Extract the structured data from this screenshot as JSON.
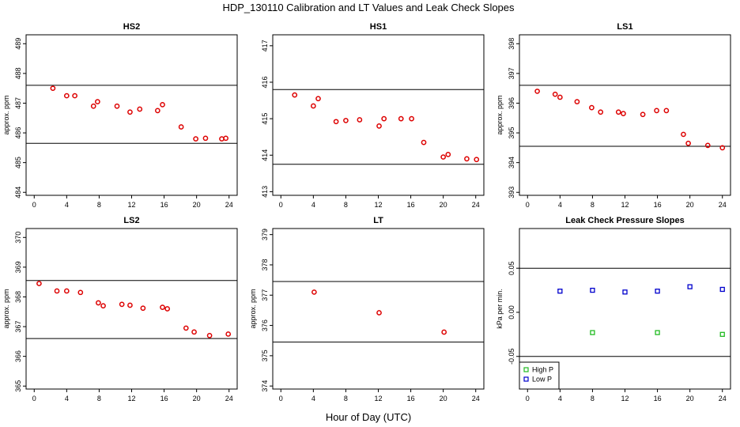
{
  "figure": {
    "title": "HDP_130110  Calibration and LT Values and Leak Check Slopes",
    "xlabel": "Hour of Day (UTC)"
  },
  "chart_data": [
    {
      "type": "scatter",
      "title": "HS2",
      "ylabel": "approx. ppm",
      "xlim": [
        -1,
        25
      ],
      "xticks": [
        0,
        4,
        8,
        12,
        16,
        20,
        24
      ],
      "ylim": [
        483.9,
        489.3
      ],
      "yticks": [
        484,
        485,
        486,
        487,
        488,
        489
      ],
      "hlines": [
        487.6,
        485.65
      ],
      "grid": false,
      "series": [
        {
          "color": "#dd0000",
          "marker": "circle",
          "x": [
            2.3,
            4.0,
            5.0,
            7.3,
            7.8,
            10.2,
            11.8,
            13.0,
            15.2,
            15.8,
            18.1,
            19.9,
            21.1,
            23.1,
            23.6
          ],
          "y": [
            487.5,
            487.25,
            487.25,
            486.9,
            487.05,
            486.9,
            486.7,
            486.8,
            486.75,
            486.95,
            486.2,
            485.8,
            485.82,
            485.8,
            485.82
          ]
        }
      ]
    },
    {
      "type": "scatter",
      "title": "HS1",
      "ylabel": "",
      "xlim": [
        -1,
        25
      ],
      "xticks": [
        0,
        4,
        8,
        12,
        16,
        20,
        24
      ],
      "ylim": [
        412.9,
        417.3
      ],
      "yticks": [
        413,
        414,
        415,
        416,
        417
      ],
      "hlines": [
        415.8,
        413.75
      ],
      "grid": false,
      "series": [
        {
          "color": "#dd0000",
          "marker": "circle",
          "x": [
            1.7,
            4.0,
            4.6,
            6.8,
            8.0,
            9.7,
            12.1,
            12.7,
            14.8,
            16.1,
            17.6,
            20.0,
            20.6,
            22.9,
            24.1
          ],
          "y": [
            415.65,
            415.35,
            415.55,
            414.92,
            414.95,
            414.97,
            414.8,
            415.0,
            415.0,
            415.0,
            414.35,
            413.95,
            414.02,
            413.9,
            413.88
          ]
        }
      ]
    },
    {
      "type": "scatter",
      "title": "LS1",
      "ylabel": "approx. ppm",
      "xlim": [
        -1,
        25
      ],
      "xticks": [
        0,
        4,
        8,
        12,
        16,
        20,
        24
      ],
      "ylim": [
        392.9,
        398.3
      ],
      "yticks": [
        393,
        394,
        395,
        396,
        397,
        398
      ],
      "hlines": [
        396.6,
        394.55
      ],
      "grid": false,
      "series": [
        {
          "color": "#dd0000",
          "marker": "circle",
          "x": [
            1.2,
            3.4,
            4.0,
            6.1,
            7.9,
            9.0,
            11.2,
            11.8,
            14.2,
            15.9,
            17.1,
            19.2,
            19.8,
            22.2,
            24.0
          ],
          "y": [
            396.4,
            396.3,
            396.2,
            396.05,
            395.85,
            395.7,
            395.7,
            395.65,
            395.62,
            395.75,
            395.75,
            394.95,
            394.65,
            394.58,
            394.5
          ]
        }
      ]
    },
    {
      "type": "scatter",
      "title": "LS2",
      "ylabel": "approx. ppm",
      "xlim": [
        -1,
        25
      ],
      "xticks": [
        0,
        4,
        8,
        12,
        16,
        20,
        24
      ],
      "ylim": [
        364.9,
        370.3
      ],
      "yticks": [
        365,
        366,
        367,
        368,
        369,
        370
      ],
      "hlines": [
        368.55,
        366.6
      ],
      "grid": false,
      "series": [
        {
          "color": "#dd0000",
          "marker": "circle",
          "x": [
            0.6,
            2.8,
            4.0,
            5.7,
            7.9,
            8.5,
            10.8,
            11.8,
            13.4,
            15.8,
            16.4,
            18.7,
            19.7,
            21.6,
            23.9
          ],
          "y": [
            368.45,
            368.2,
            368.2,
            368.15,
            367.8,
            367.7,
            367.75,
            367.72,
            367.62,
            367.65,
            367.6,
            366.95,
            366.82,
            366.7,
            366.75
          ]
        }
      ]
    },
    {
      "type": "scatter",
      "title": "LT",
      "ylabel": "approx. ppm",
      "xlim": [
        -1,
        25
      ],
      "xticks": [
        0,
        4,
        8,
        12,
        16,
        20,
        24
      ],
      "ylim": [
        373.9,
        379.2
      ],
      "yticks": [
        374,
        375,
        376,
        377,
        378,
        379
      ],
      "hlines": [
        377.45,
        375.45
      ],
      "grid": false,
      "series": [
        {
          "color": "#dd0000",
          "marker": "circle",
          "x": [
            4.1,
            12.1,
            20.1
          ],
          "y": [
            377.1,
            376.42,
            375.78
          ]
        }
      ]
    },
    {
      "type": "scatter",
      "title": "Leak Check Pressure Slopes",
      "ylabel": "kPa per min.",
      "xlim": [
        -1,
        25
      ],
      "xticks": [
        0,
        4,
        8,
        12,
        16,
        20,
        24
      ],
      "ylim": [
        -0.087,
        0.095
      ],
      "yticks": [
        -0.05,
        0.0,
        0.05
      ],
      "ytick_labels": [
        "-0.05",
        "0.00",
        "0.05"
      ],
      "hlines": [
        0.05,
        -0.05
      ],
      "grid": false,
      "legend": "bottom-left",
      "series": [
        {
          "name": "High P",
          "color": "#22bb22",
          "marker": "square",
          "x": [
            8,
            16,
            24
          ],
          "y": [
            -0.023,
            -0.023,
            -0.025
          ]
        },
        {
          "name": "Low P",
          "color": "#0000cc",
          "marker": "square",
          "x": [
            4,
            8,
            12,
            16,
            20,
            24
          ],
          "y": [
            0.024,
            0.025,
            0.023,
            0.024,
            0.029,
            0.026
          ]
        }
      ]
    }
  ]
}
